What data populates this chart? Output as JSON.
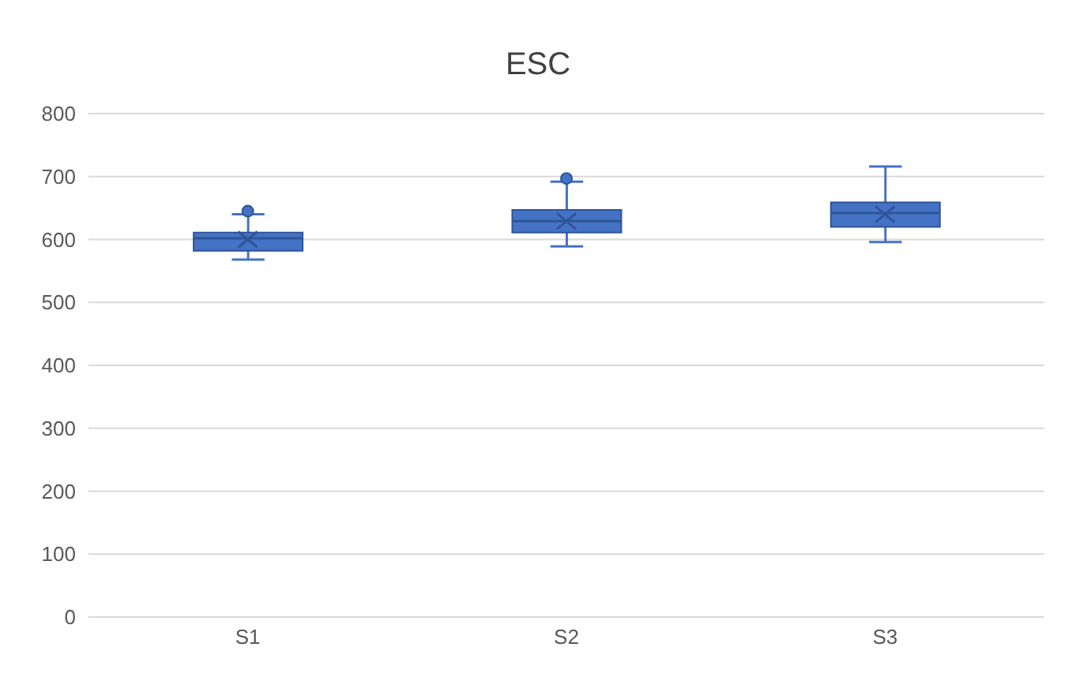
{
  "chart_data": {
    "type": "box",
    "title": "ESC",
    "categories": [
      "S1",
      "S2",
      "S3"
    ],
    "color": "#4472c4",
    "boxes": [
      {
        "low": 568,
        "q1": 582,
        "median": 602,
        "q3": 611,
        "high": 640,
        "mean": 600,
        "outliers": [
          645
        ]
      },
      {
        "low": 589,
        "q1": 611,
        "median": 629,
        "q3": 647,
        "high": 692,
        "mean": 629,
        "outliers": [
          697
        ]
      },
      {
        "low": 596,
        "q1": 620,
        "median": 642,
        "q3": 659,
        "high": 716,
        "mean": 640
      }
    ],
    "ylim": [
      0,
      800
    ],
    "yticks": [
      0,
      100,
      200,
      300,
      400,
      500,
      600,
      700,
      800
    ],
    "grid": "y"
  }
}
